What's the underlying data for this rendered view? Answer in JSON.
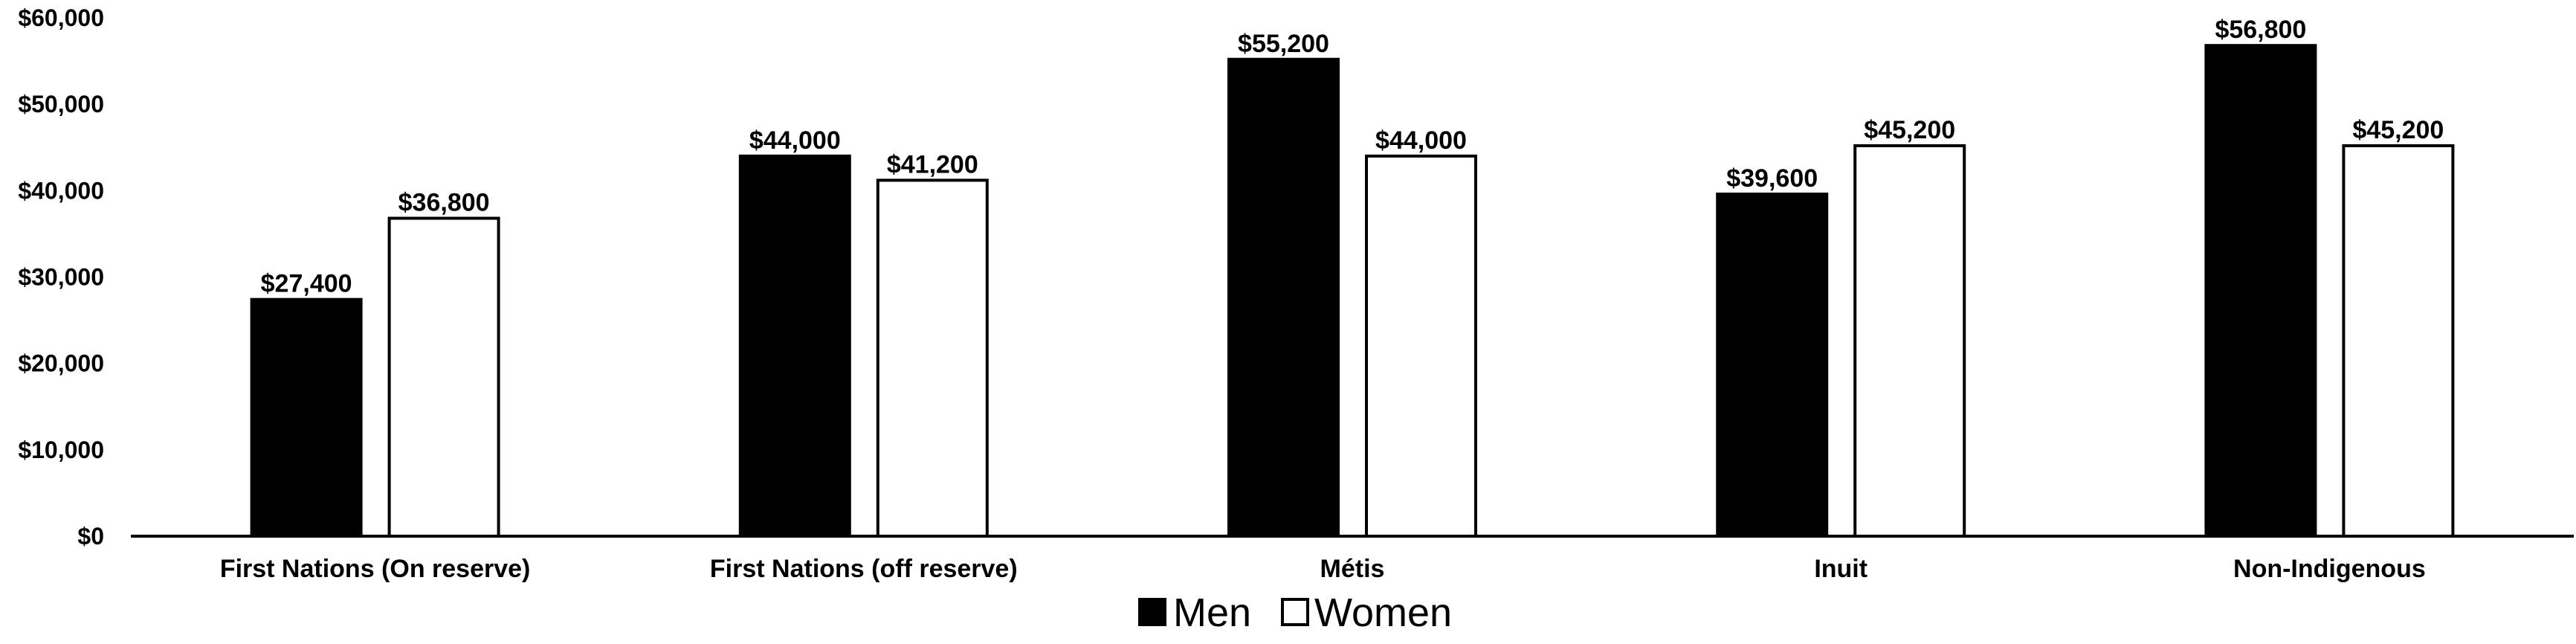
{
  "chart_data": {
    "type": "bar",
    "categories": [
      "First Nations (On reserve)",
      "First Nations (off reserve)",
      "Métis",
      "Inuit",
      "Non-Indigenous"
    ],
    "series": [
      {
        "name": "Men",
        "values": [
          27400,
          44000,
          55200,
          39600,
          56800
        ],
        "labels": [
          "$27,400",
          "$44,000",
          "$55,200",
          "$39,600",
          "$56,800"
        ],
        "fill": "#000000",
        "stroke": "#000000"
      },
      {
        "name": "Women",
        "values": [
          36800,
          41200,
          44000,
          45200,
          45200
        ],
        "labels": [
          "$36,800",
          "$41,200",
          "$44,000",
          "$45,200",
          "$45,200"
        ],
        "fill": "#ffffff",
        "stroke": "#000000"
      }
    ],
    "y_ticks": [
      {
        "value": 0,
        "label": "$0"
      },
      {
        "value": 10000,
        "label": "$10,000"
      },
      {
        "value": 20000,
        "label": "$20,000"
      },
      {
        "value": 30000,
        "label": "$30,000"
      },
      {
        "value": 40000,
        "label": "$40,000"
      },
      {
        "value": 50000,
        "label": "$50,000"
      },
      {
        "value": 60000,
        "label": "$60,000"
      }
    ],
    "ylim": [
      0,
      60000
    ],
    "title": "",
    "xlabel": "",
    "ylabel": "",
    "grid": false,
    "legend_position": "bottom-center"
  }
}
